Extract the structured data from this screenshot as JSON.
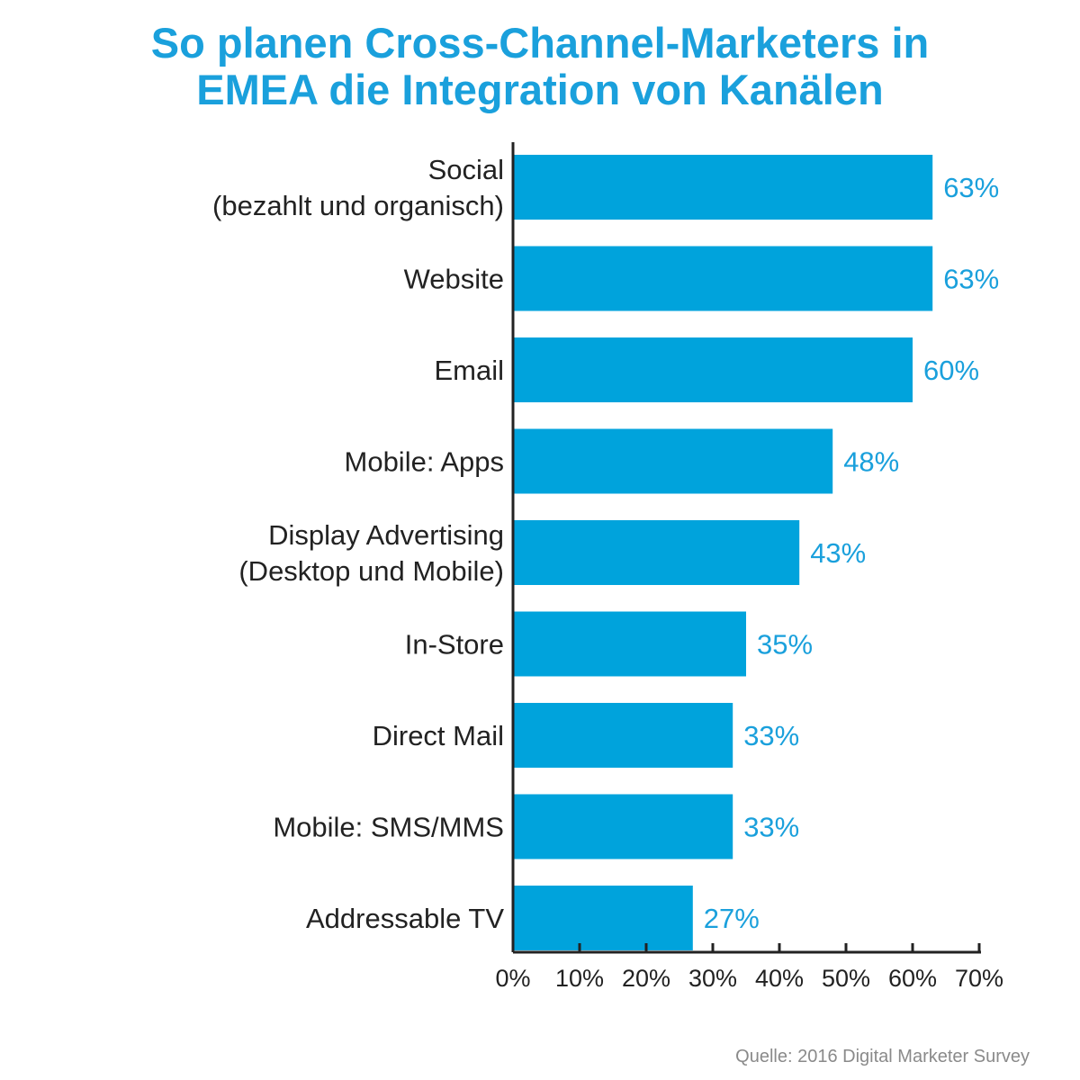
{
  "title": {
    "line1": "So planen Cross-Channel-Marketers in",
    "line2": "EMEA die Integration von Kanälen"
  },
  "source": "Quelle: 2016 Digital Marketer Survey",
  "colors": {
    "bar": "#00a3dc",
    "value_label": "#1aa0dc",
    "title": "#1aa0dc",
    "axis": "#222222",
    "category_label": "#222222",
    "source": "#8a8a8a"
  },
  "chart_data": {
    "type": "bar",
    "orientation": "horizontal",
    "title": "So planen Cross-Channel-Marketers in EMEA die Integration von Kanälen",
    "xlabel": "",
    "ylabel": "",
    "xlim": [
      0,
      70
    ],
    "x_ticks": [
      "0%",
      "10%",
      "20%",
      "30%",
      "40%",
      "50%",
      "60%",
      "70%"
    ],
    "grid": false,
    "legend": "none",
    "categories": [
      [
        "Social",
        "(bezahlt und organisch)"
      ],
      [
        "Website"
      ],
      [
        "Email"
      ],
      [
        "Mobile: Apps"
      ],
      [
        "Display Advertising",
        "(Desktop und Mobile)"
      ],
      [
        "In-Store"
      ],
      [
        "Direct Mail"
      ],
      [
        "Mobile: SMS/MMS"
      ],
      [
        "Addressable TV"
      ]
    ],
    "values": [
      63,
      63,
      60,
      48,
      43,
      35,
      33,
      33,
      27
    ],
    "value_labels": [
      "63%",
      "63%",
      "60%",
      "48%",
      "43%",
      "35%",
      "33%",
      "33%",
      "27%"
    ]
  }
}
